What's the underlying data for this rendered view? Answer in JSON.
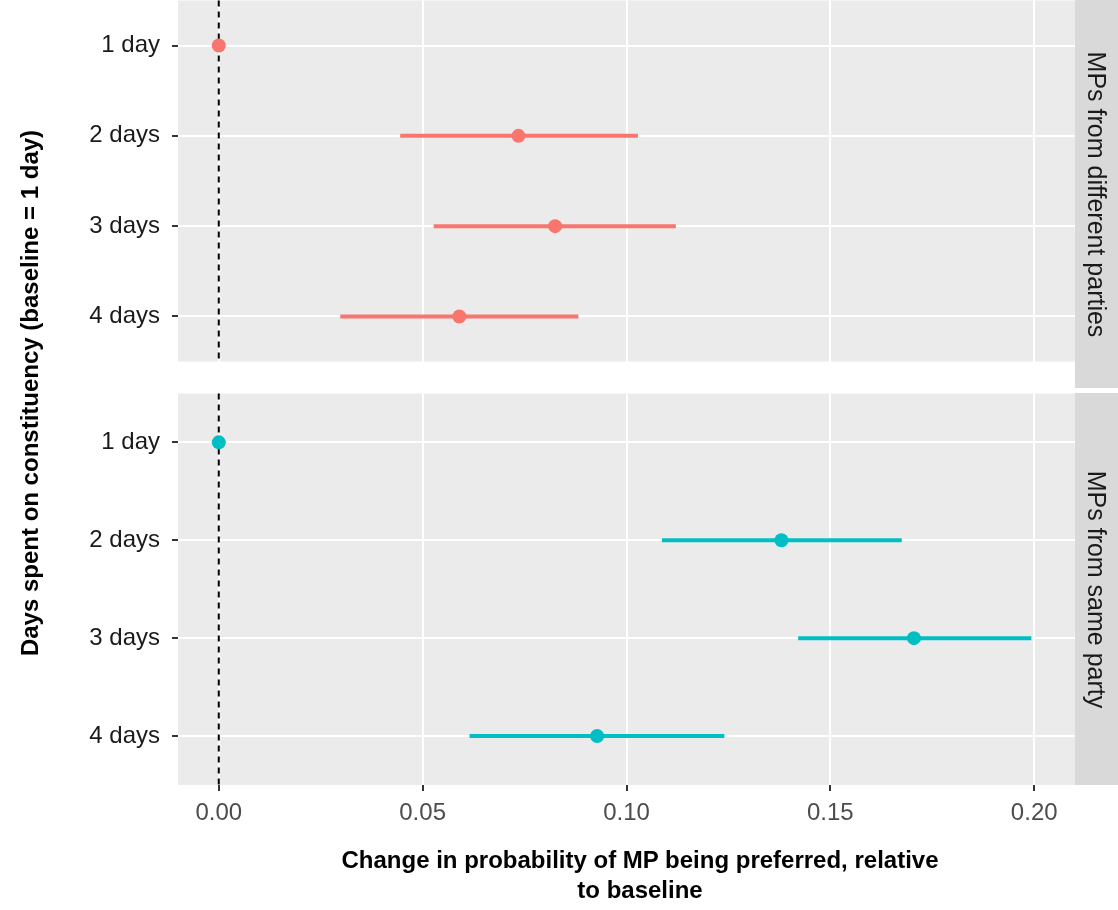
{
  "chart_data": [
    {
      "type": "scatter",
      "orientation": "horizontal",
      "subtitle": "MPs from different parties",
      "ylabel": "Days spent on constituency (baseline = 1 day)",
      "categories": [
        "1 day",
        "2 days",
        "3 days",
        "4 days"
      ],
      "values": [
        0,
        0.0735,
        0.0825,
        0.059
      ],
      "errors": [
        null,
        [
          0.0445,
          0.1028
        ],
        [
          0.0527,
          0.1121
        ],
        [
          0.0298,
          0.0882
        ]
      ],
      "color": "#f8766d",
      "marker": "circle",
      "xlim": [
        -0.01,
        0.21
      ],
      "xticks": [
        0,
        0.05,
        0.1,
        0.15,
        0.2
      ],
      "tick_labels": "y",
      "grid": true,
      "ref_lines": [
        {
          "axis": "x",
          "value": 0,
          "line_style": "dashed",
          "color": "#000000"
        }
      ]
    },
    {
      "type": "scatter",
      "orientation": "horizontal",
      "subtitle": "MPs from same party",
      "xlabel": "Change in probability of MP being preferred, relative to baseline",
      "categories": [
        "1 day",
        "2 days",
        "3 days",
        "4 days"
      ],
      "values": [
        0,
        0.138,
        0.1705,
        0.0928
      ],
      "errors": [
        null,
        [
          0.1087,
          0.1675
        ],
        [
          0.1421,
          0.1993
        ],
        [
          0.0615,
          0.124
        ]
      ],
      "color": "#00bfc4",
      "marker": "circle",
      "xlim": [
        -0.01,
        0.21
      ],
      "xticks": [
        {
          "value": 0,
          "label": "0.00"
        },
        {
          "value": 0.05,
          "label": "0.05"
        },
        {
          "value": 0.1,
          "label": "0.10"
        },
        {
          "value": 0.15,
          "label": "0.15"
        },
        {
          "value": 0.2,
          "label": "0.20"
        }
      ],
      "grid": true,
      "ref_lines": [
        {
          "axis": "x",
          "value": 0,
          "line_style": "dashed",
          "color": "#000000"
        }
      ]
    }
  ]
}
